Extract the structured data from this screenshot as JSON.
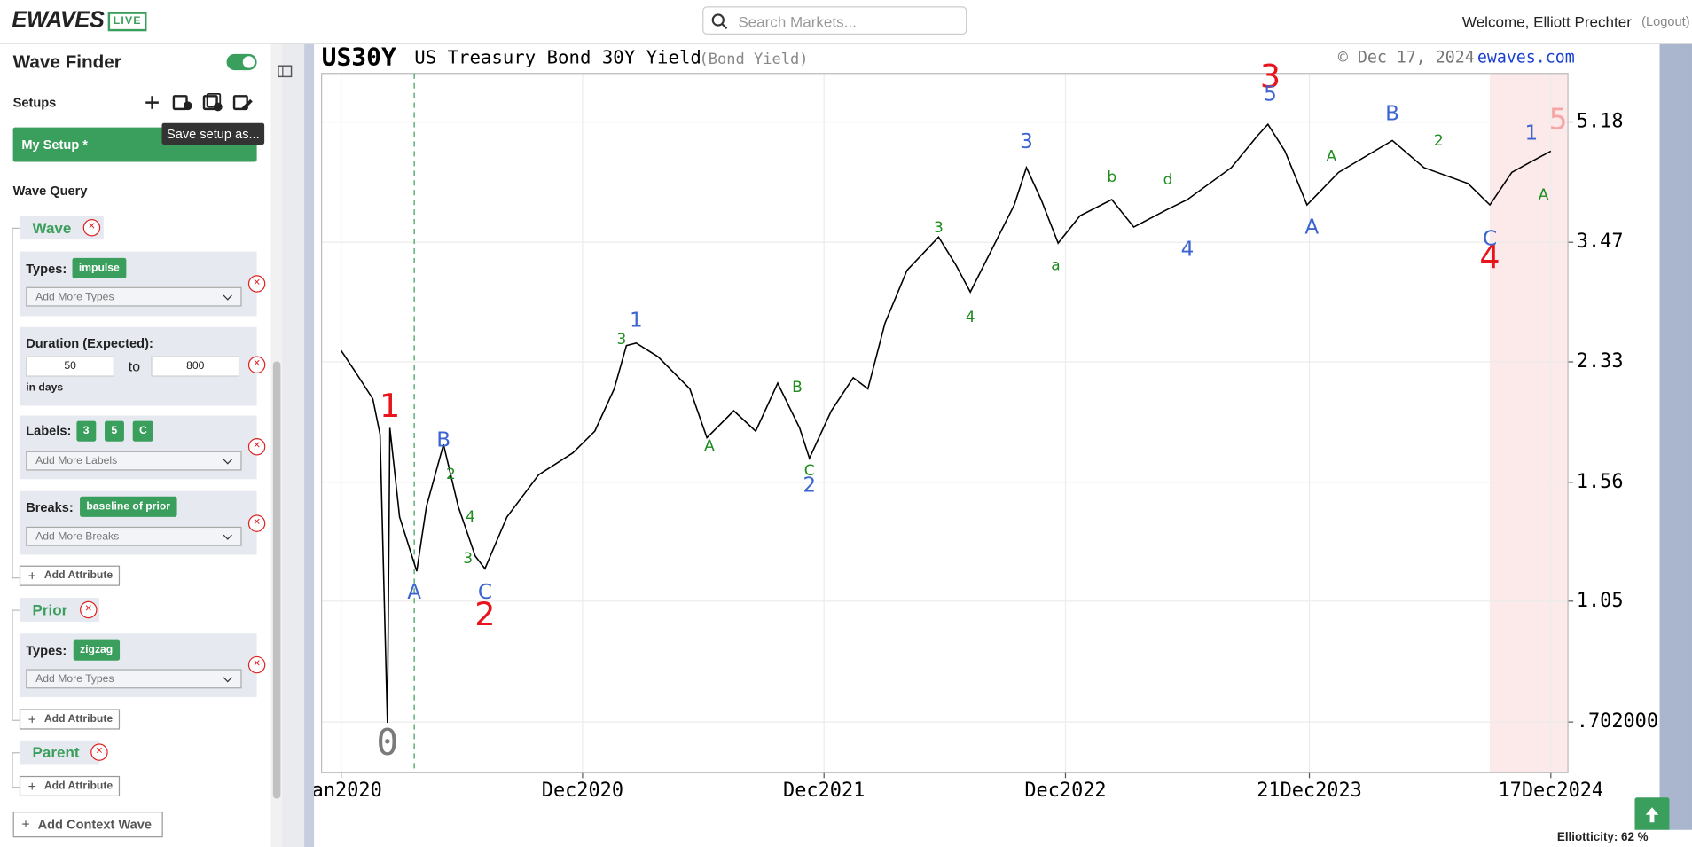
{
  "header": {
    "logo": "EWAVES",
    "badge": "LIVE",
    "search_placeholder": "Search Markets...",
    "welcome": "Welcome, Elliott Prechter",
    "logout": "(Logout)"
  },
  "sidebar": {
    "title": "Wave Finder",
    "setups_label": "Setups",
    "tooltip": "Save setup as...",
    "setup_name": "My Setup *",
    "query_label": "Wave Query",
    "wave": {
      "title": "Wave",
      "types_label": "Types:",
      "types": [
        "impulse"
      ],
      "types_placeholder": "Add More Types",
      "duration_label": "Duration (Expected):",
      "duration_from": 50,
      "to_label": "to",
      "duration_to": 800,
      "duration_unit": "in days",
      "labels_label": "Labels:",
      "labels": [
        "3",
        "5",
        "C"
      ],
      "labels_placeholder": "Add More Labels",
      "breaks_label": "Breaks:",
      "breaks": [
        "baseline of prior"
      ],
      "breaks_placeholder": "Add More Breaks",
      "add_attribute": "Add Attribute"
    },
    "prior": {
      "title": "Prior",
      "types_label": "Types:",
      "types": [
        "zigzag"
      ],
      "types_placeholder": "Add More Types",
      "add_attribute": "Add Attribute"
    },
    "parent": {
      "title": "Parent",
      "add_attribute": "Add Attribute"
    },
    "add_context": "Add Context Wave"
  },
  "chart_data": {
    "type": "line",
    "symbol": "US30Y",
    "title": "US Treasury Bond 30Y Yield",
    "subtitle": "(Bond Yield)",
    "date": "© Dec 17, 2024",
    "source": "ewaves.com",
    "x": [
      2020.0,
      2020.06,
      2020.13,
      2020.16,
      2020.19,
      2020.2,
      2020.24,
      2020.31,
      2020.35,
      2020.42,
      2020.48,
      2020.55,
      2020.59,
      2020.68,
      2020.81,
      2020.95,
      2021.04,
      2021.12,
      2021.17,
      2021.21,
      2021.3,
      2021.43,
      2021.5,
      2021.61,
      2021.7,
      2021.79,
      2021.88,
      2021.92,
      2022.01,
      2022.1,
      2022.16,
      2022.23,
      2022.32,
      2022.45,
      2022.52,
      2022.58,
      2022.67,
      2022.76,
      2022.81,
      2022.87,
      2022.94,
      2023.03,
      2023.16,
      2023.25,
      2023.38,
      2023.47,
      2023.65,
      2023.76,
      2023.8,
      2023.87,
      2023.96,
      2024.09,
      2024.31,
      2024.44,
      2024.62,
      2024.71,
      2024.8,
      2024.88,
      2024.96
    ],
    "series": [
      {
        "color": "#000000",
        "values": [
          2.42,
          2.25,
          2.06,
          1.83,
          0.7,
          1.87,
          1.39,
          1.16,
          1.44,
          1.77,
          1.44,
          1.22,
          1.17,
          1.39,
          1.6,
          1.72,
          1.85,
          2.13,
          2.46,
          2.48,
          2.37,
          2.13,
          1.81,
          1.98,
          1.85,
          2.17,
          1.87,
          1.69,
          1.98,
          2.21,
          2.13,
          2.65,
          3.16,
          3.53,
          3.22,
          2.94,
          3.4,
          3.93,
          4.45,
          4.0,
          3.46,
          3.79,
          4.0,
          3.65,
          3.86,
          4.0,
          4.45,
          4.96,
          5.14,
          4.7,
          3.93,
          4.38,
          4.87,
          4.45,
          4.22,
          3.93,
          4.38,
          4.54,
          4.7
        ]
      }
    ],
    "log_scale": true,
    "grid": true,
    "xlim": [
      2019.92,
      2025.03
    ],
    "ylim": [
      0.593,
      6.09
    ],
    "xticks": [
      {
        "value": 2020.0,
        "label": "Jan2020"
      },
      {
        "value": 2020.99,
        "label": "Dec2020"
      },
      {
        "value": 2021.98,
        "label": "Dec2021"
      },
      {
        "value": 2022.97,
        "label": "Dec2022"
      },
      {
        "value": 2023.97,
        "label": "21Dec2023"
      },
      {
        "value": 2024.96,
        "label": "17Dec2024"
      }
    ],
    "yticks": [
      {
        "value": 0.702,
        "label": ".702000"
      },
      1.05,
      1.56,
      2.33,
      3.47,
      5.18
    ],
    "shaded_x": [
      2024.71,
      2025.03
    ],
    "marker_x": 2020.3,
    "annotations": [
      {
        "text": "0",
        "x": 2020.19,
        "y": 0.65,
        "color": "#7a7a7a"
      },
      {
        "text": "1",
        "x": 2020.2,
        "y": 2.0,
        "color": "#e8141c"
      },
      {
        "text": "2",
        "x": 2020.59,
        "y": 1.0,
        "color": "#e8141c"
      },
      {
        "text": "3",
        "x": 2023.81,
        "y": 6.0,
        "color": "#e8141c"
      },
      {
        "text": "4",
        "x": 2024.71,
        "y": 3.28,
        "color": "#e8141c"
      },
      {
        "text": "5",
        "x": 2024.99,
        "y": 5.2,
        "color": "#f6a5a5"
      },
      {
        "text": "A",
        "x": 2020.3,
        "y": 1.08,
        "color": "#3b64d0"
      },
      {
        "text": "B",
        "x": 2020.42,
        "y": 1.79,
        "color": "#3b64d0"
      },
      {
        "text": "C",
        "x": 2020.59,
        "y": 1.08,
        "color": "#3b64d0"
      },
      {
        "text": "1",
        "x": 2021.21,
        "y": 2.67,
        "color": "#3b64d0"
      },
      {
        "text": "2",
        "x": 2021.92,
        "y": 1.54,
        "color": "#3b64d0"
      },
      {
        "text": "3",
        "x": 2022.81,
        "y": 4.84,
        "color": "#3b64d0"
      },
      {
        "text": "4",
        "x": 2023.47,
        "y": 3.38,
        "color": "#3b64d0"
      },
      {
        "text": "5",
        "x": 2023.81,
        "y": 5.67,
        "color": "#3b64d0"
      },
      {
        "text": "A",
        "x": 2023.98,
        "y": 3.64,
        "color": "#3b64d0"
      },
      {
        "text": "B",
        "x": 2024.31,
        "y": 5.31,
        "color": "#3b64d0"
      },
      {
        "text": "C",
        "x": 2024.71,
        "y": 3.5,
        "color": "#3b64d0"
      },
      {
        "text": "1",
        "x": 2024.88,
        "y": 4.98,
        "color": "#3b64d0"
      },
      {
        "text": "2",
        "x": 2020.45,
        "y": 1.6,
        "color": "#1e8c1e"
      },
      {
        "text": "3",
        "x": 2020.52,
        "y": 1.21,
        "color": "#1e8c1e"
      },
      {
        "text": "4",
        "x": 2020.53,
        "y": 1.39,
        "color": "#1e8c1e"
      },
      {
        "text": "3",
        "x": 2021.15,
        "y": 2.51,
        "color": "#1e8c1e"
      },
      {
        "text": "A",
        "x": 2021.51,
        "y": 1.76,
        "color": "#1e8c1e"
      },
      {
        "text": "B",
        "x": 2021.87,
        "y": 2.14,
        "color": "#1e8c1e"
      },
      {
        "text": "C",
        "x": 2021.92,
        "y": 1.62,
        "color": "#1e8c1e"
      },
      {
        "text": "3",
        "x": 2022.45,
        "y": 3.64,
        "color": "#1e8c1e"
      },
      {
        "text": "4",
        "x": 2022.58,
        "y": 2.7,
        "color": "#1e8c1e"
      },
      {
        "text": "a",
        "x": 2022.93,
        "y": 3.21,
        "color": "#1e8c1e"
      },
      {
        "text": "b",
        "x": 2023.16,
        "y": 4.31,
        "color": "#1e8c1e"
      },
      {
        "text": "d",
        "x": 2023.39,
        "y": 4.27,
        "color": "#1e8c1e"
      },
      {
        "text": "A",
        "x": 2024.06,
        "y": 4.62,
        "color": "#1e8c1e"
      },
      {
        "text": "2",
        "x": 2024.5,
        "y": 4.86,
        "color": "#1e8c1e"
      },
      {
        "text": "A",
        "x": 2024.93,
        "y": 4.06,
        "color": "#1e8c1e"
      }
    ]
  },
  "footer": {
    "elliotticity": "Elliotticity: 62 %"
  }
}
